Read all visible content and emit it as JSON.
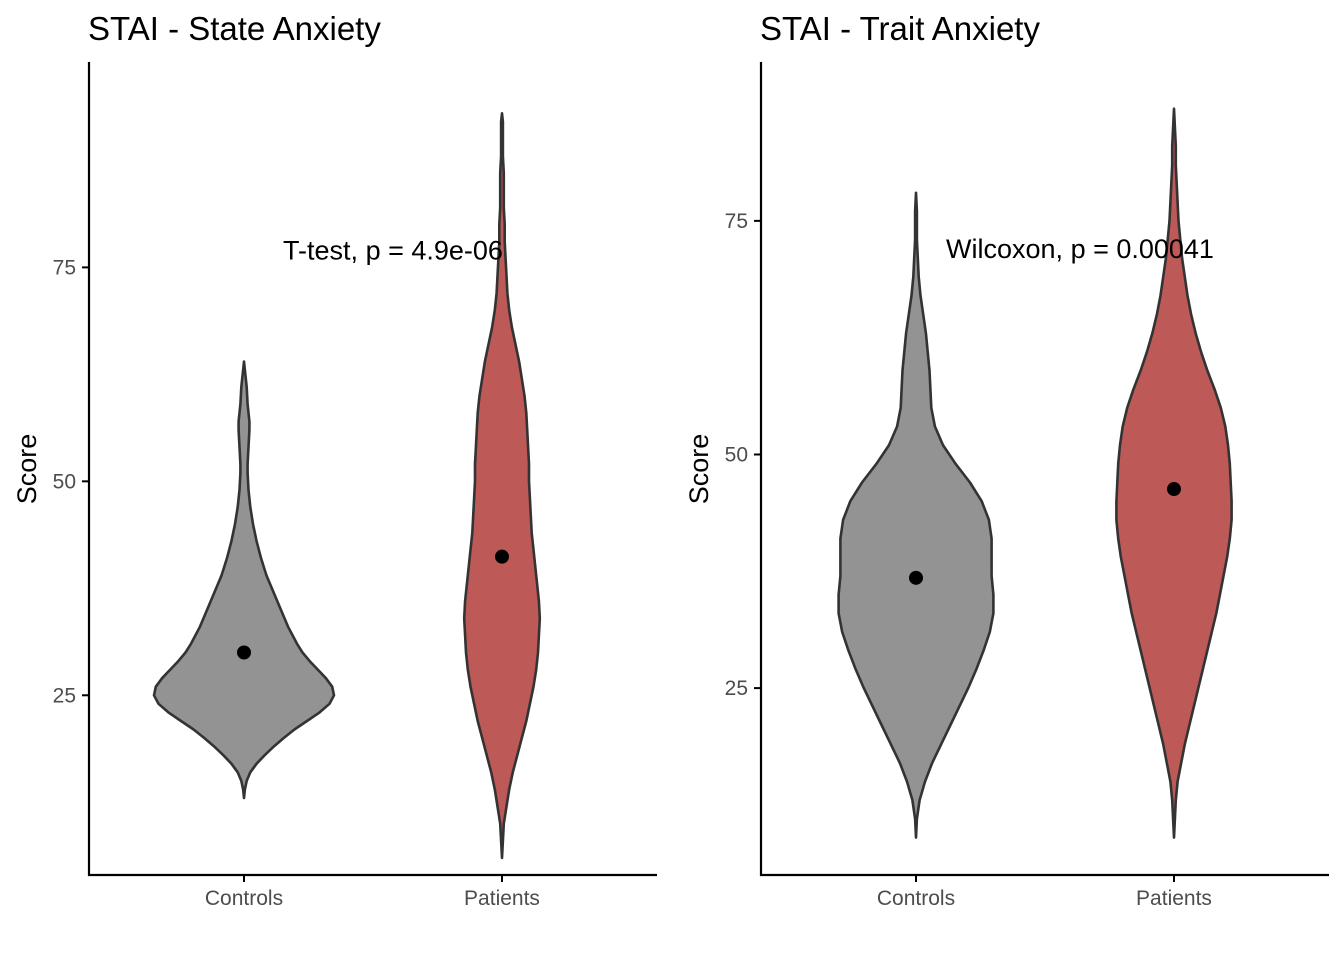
{
  "colors": {
    "Controls": "#939393",
    "Patients": "#bd5957",
    "mean_point": "#000000"
  },
  "chart_data": [
    {
      "type": "violin",
      "title": "STAI - State Anxiety",
      "xlabel": "",
      "ylabel": "Score",
      "categories": [
        "Controls",
        "Patients"
      ],
      "ylim": [
        4,
        99
      ],
      "yticks": [
        25,
        50,
        75
      ],
      "annotation": "T-test, p = 4.9e-06",
      "annotation_y": 77,
      "means": [
        30,
        41.2
      ],
      "violins": [
        {
          "group": "Controls",
          "ymin": 13,
          "ymax": 64,
          "profile": [
            [
              13,
              0.0
            ],
            [
              14,
              0.01
            ],
            [
              15,
              0.03
            ],
            [
              16,
              0.07
            ],
            [
              17,
              0.14
            ],
            [
              18,
              0.23
            ],
            [
              19,
              0.33
            ],
            [
              20,
              0.44
            ],
            [
              21,
              0.56
            ],
            [
              22,
              0.7
            ],
            [
              23,
              0.84
            ],
            [
              24,
              0.95
            ],
            [
              25,
              1.0
            ],
            [
              26,
              0.98
            ],
            [
              27,
              0.91
            ],
            [
              28,
              0.82
            ],
            [
              29,
              0.73
            ],
            [
              30,
              0.65
            ],
            [
              31,
              0.59
            ],
            [
              33,
              0.49
            ],
            [
              35,
              0.41
            ],
            [
              37,
              0.33
            ],
            [
              39,
              0.25
            ],
            [
              41,
              0.19
            ],
            [
              43,
              0.14
            ],
            [
              45,
              0.1
            ],
            [
              47,
              0.07
            ],
            [
              49,
              0.05
            ],
            [
              51,
              0.04
            ],
            [
              52,
              0.04
            ],
            [
              54,
              0.05
            ],
            [
              56,
              0.06
            ],
            [
              57,
              0.06
            ],
            [
              59,
              0.04
            ],
            [
              61,
              0.03
            ],
            [
              63,
              0.01
            ],
            [
              64,
              0.0
            ]
          ]
        },
        {
          "group": "Patients",
          "ymin": 6,
          "ymax": 93,
          "profile": [
            [
              6,
              0.0
            ],
            [
              8,
              0.01
            ],
            [
              10,
              0.02
            ],
            [
              12,
              0.05
            ],
            [
              14,
              0.08
            ],
            [
              16,
              0.12
            ],
            [
              18,
              0.17
            ],
            [
              20,
              0.22
            ],
            [
              22,
              0.27
            ],
            [
              24,
              0.31
            ],
            [
              26,
              0.35
            ],
            [
              28,
              0.38
            ],
            [
              30,
              0.4
            ],
            [
              32,
              0.41
            ],
            [
              34,
              0.42
            ],
            [
              36,
              0.41
            ],
            [
              38,
              0.39
            ],
            [
              40,
              0.37
            ],
            [
              42,
              0.35
            ],
            [
              44,
              0.33
            ],
            [
              46,
              0.32
            ],
            [
              48,
              0.31
            ],
            [
              50,
              0.3
            ],
            [
              52,
              0.3
            ],
            [
              54,
              0.29
            ],
            [
              56,
              0.28
            ],
            [
              58,
              0.27
            ],
            [
              60,
              0.25
            ],
            [
              62,
              0.22
            ],
            [
              64,
              0.19
            ],
            [
              66,
              0.15
            ],
            [
              68,
              0.11
            ],
            [
              70,
              0.08
            ],
            [
              72,
              0.06
            ],
            [
              74,
              0.05
            ],
            [
              76,
              0.04
            ],
            [
              78,
              0.03
            ],
            [
              80,
              0.03
            ],
            [
              82,
              0.02
            ],
            [
              84,
              0.02
            ],
            [
              86,
              0.02
            ],
            [
              88,
              0.01
            ],
            [
              90,
              0.01
            ],
            [
              92,
              0.01
            ],
            [
              93,
              0.0
            ]
          ]
        }
      ]
    },
    {
      "type": "violin",
      "title": "STAI - Trait Anxiety",
      "xlabel": "",
      "ylabel": "Score",
      "categories": [
        "Controls",
        "Patients"
      ],
      "ylim": [
        5,
        92
      ],
      "yticks": [
        25,
        50,
        75
      ],
      "annotation": "Wilcoxon, p = 0.00041",
      "annotation_y": 72,
      "means": [
        36.8,
        46.3
      ],
      "violins": [
        {
          "group": "Controls",
          "ymin": 9,
          "ymax": 78,
          "profile": [
            [
              9,
              0.0
            ],
            [
              11,
              0.01
            ],
            [
              13,
              0.04
            ],
            [
              15,
              0.1
            ],
            [
              17,
              0.18
            ],
            [
              19,
              0.28
            ],
            [
              21,
              0.38
            ],
            [
              23,
              0.48
            ],
            [
              25,
              0.58
            ],
            [
              27,
              0.67
            ],
            [
              29,
              0.75
            ],
            [
              31,
              0.82
            ],
            [
              33,
              0.86
            ],
            [
              35,
              0.86
            ],
            [
              37,
              0.84
            ],
            [
              39,
              0.84
            ],
            [
              41,
              0.84
            ],
            [
              43,
              0.81
            ],
            [
              45,
              0.73
            ],
            [
              47,
              0.6
            ],
            [
              49,
              0.44
            ],
            [
              51,
              0.3
            ],
            [
              53,
              0.21
            ],
            [
              55,
              0.17
            ],
            [
              57,
              0.16
            ],
            [
              59,
              0.15
            ],
            [
              61,
              0.13
            ],
            [
              63,
              0.11
            ],
            [
              65,
              0.08
            ],
            [
              67,
              0.05
            ],
            [
              69,
              0.03
            ],
            [
              71,
              0.02
            ],
            [
              73,
              0.01
            ],
            [
              76,
              0.01
            ],
            [
              78,
              0.0
            ]
          ]
        },
        {
          "group": "Patients",
          "ymin": 9,
          "ymax": 87,
          "profile": [
            [
              9,
              0.0
            ],
            [
              11,
              0.01
            ],
            [
              13,
              0.02
            ],
            [
              15,
              0.04
            ],
            [
              17,
              0.08
            ],
            [
              19,
              0.12
            ],
            [
              21,
              0.17
            ],
            [
              23,
              0.22
            ],
            [
              25,
              0.27
            ],
            [
              27,
              0.32
            ],
            [
              29,
              0.37
            ],
            [
              31,
              0.42
            ],
            [
              33,
              0.47
            ],
            [
              35,
              0.51
            ],
            [
              37,
              0.55
            ],
            [
              39,
              0.59
            ],
            [
              41,
              0.62
            ],
            [
              43,
              0.64
            ],
            [
              45,
              0.64
            ],
            [
              47,
              0.63
            ],
            [
              49,
              0.62
            ],
            [
              51,
              0.6
            ],
            [
              53,
              0.57
            ],
            [
              55,
              0.52
            ],
            [
              57,
              0.45
            ],
            [
              59,
              0.37
            ],
            [
              61,
              0.3
            ],
            [
              63,
              0.24
            ],
            [
              65,
              0.19
            ],
            [
              67,
              0.15
            ],
            [
              69,
              0.12
            ],
            [
              71,
              0.09
            ],
            [
              73,
              0.07
            ],
            [
              75,
              0.05
            ],
            [
              77,
              0.04
            ],
            [
              79,
              0.03
            ],
            [
              81,
              0.02
            ],
            [
              83,
              0.02
            ],
            [
              85,
              0.01
            ],
            [
              87,
              0.0
            ]
          ]
        }
      ]
    }
  ]
}
